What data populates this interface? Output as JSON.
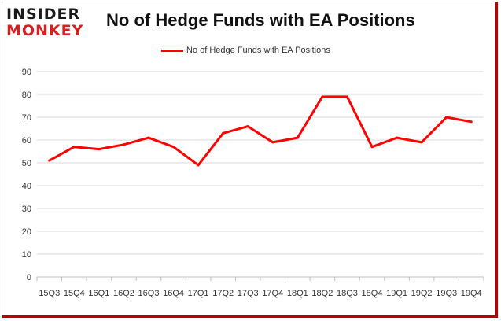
{
  "logo": {
    "top_text": "INSIDER",
    "bottom_text": "MONKEY",
    "top_color": "#1a1a1a",
    "bottom_color": "#d42020"
  },
  "chart_data": {
    "type": "line",
    "title": "No of Hedge Funds with EA Positions",
    "xlabel": "",
    "ylabel": "",
    "categories": [
      "15Q3",
      "15Q4",
      "16Q1",
      "16Q2",
      "16Q3",
      "16Q4",
      "17Q1",
      "17Q2",
      "17Q3",
      "17Q4",
      "18Q1",
      "18Q2",
      "18Q3",
      "18Q4",
      "19Q1",
      "19Q2",
      "19Q3",
      "19Q4"
    ],
    "series": [
      {
        "name": "No of Hedge Funds with EA Positions",
        "values": [
          51,
          57,
          56,
          58,
          61,
          57,
          49,
          63,
          66,
          59,
          61,
          79,
          79,
          57,
          61,
          59,
          70,
          68
        ],
        "color": "#ff0000"
      }
    ],
    "ylim": [
      0,
      90
    ],
    "yticks": [
      0,
      10,
      20,
      30,
      40,
      50,
      60,
      70,
      80,
      90
    ],
    "grid": true,
    "legend_position": "top-center"
  }
}
